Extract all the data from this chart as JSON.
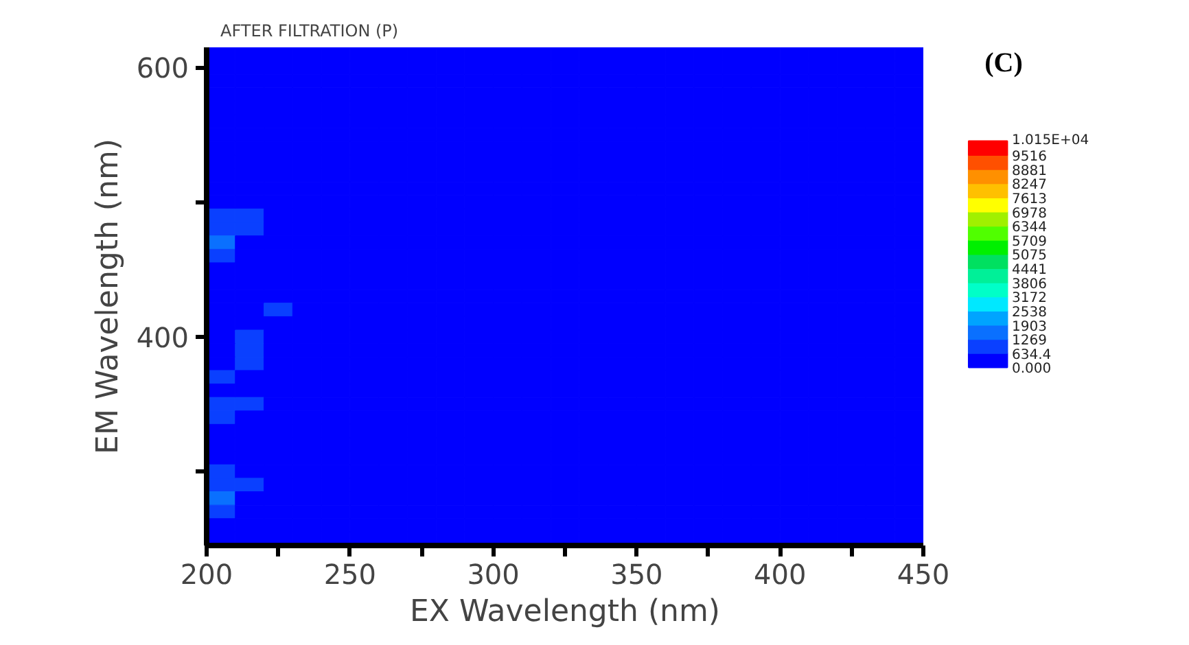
{
  "chart_data": {
    "type": "heatmap",
    "title": "AFTER FILTRATION (P)",
    "xlabel": "EX Wavelength (nm)",
    "ylabel": "EM Wavelength (nm)",
    "annotations": [
      "(C)"
    ],
    "x": [
      205,
      215,
      225,
      235,
      245,
      255,
      265,
      275,
      285,
      295,
      305,
      315,
      325,
      335,
      345,
      355,
      365,
      375,
      385,
      395,
      405,
      415,
      425,
      435,
      445
    ],
    "y": [
      610,
      600,
      590,
      580,
      570,
      560,
      550,
      540,
      530,
      520,
      510,
      500,
      490,
      480,
      470,
      460,
      450,
      440,
      430,
      420,
      410,
      400,
      390,
      380,
      370,
      360,
      350,
      340,
      330,
      320,
      310,
      300,
      290,
      280,
      270,
      260,
      250
    ],
    "xlim": [
      200,
      450
    ],
    "ylim": [
      245,
      615
    ],
    "xticks": [
      200,
      {
        "value": 225,
        "label": null
      },
      250,
      {
        "value": 275,
        "label": null
      },
      300,
      {
        "value": 325,
        "label": null
      },
      350,
      {
        "value": 375,
        "label": null
      },
      400,
      {
        "value": 425,
        "label": null
      },
      450
    ],
    "yticks": [
      {
        "value": 300,
        "label": null
      },
      400,
      {
        "value": 500,
        "label": null
      },
      600
    ],
    "clim": [
      0,
      10150
    ],
    "cticks": [
      {
        "value": 0,
        "label": "0.000"
      },
      {
        "value": 634.4,
        "label": "634.4"
      },
      1269,
      1903,
      2538,
      3172,
      3806,
      4441,
      5075,
      5709,
      6344,
      6978,
      7613,
      8247,
      8881,
      9516,
      {
        "value": 10150,
        "label": "1.015E+04"
      }
    ],
    "cells": [
      [
        0,
        0,
        0,
        0,
        0,
        0,
        0,
        0,
        0,
        0,
        0,
        0,
        0,
        0,
        0,
        0,
        0,
        0,
        0,
        0,
        0,
        0,
        0,
        0,
        0
      ],
      [
        0,
        0,
        0,
        0,
        0,
        0,
        0,
        0,
        0,
        0,
        0,
        0,
        0,
        0,
        0,
        0,
        0,
        0,
        0,
        0,
        0,
        0,
        0,
        0,
        0
      ],
      [
        0,
        0,
        0,
        0,
        0,
        0,
        0,
        0,
        0,
        0,
        0,
        0,
        0,
        0,
        0,
        0,
        0,
        0,
        0,
        0,
        0,
        0,
        0,
        0,
        0
      ],
      [
        0,
        0,
        0,
        0,
        0,
        0,
        0,
        0,
        0,
        0,
        0,
        0,
        0,
        0,
        0,
        0,
        0,
        0,
        0,
        0,
        0,
        0,
        0,
        0,
        0
      ],
      [
        0,
        0,
        0,
        0,
        0,
        0,
        0,
        0,
        0,
        0,
        0,
        0,
        0,
        0,
        0,
        0,
        0,
        0,
        0,
        0,
        0,
        0,
        0,
        0,
        0
      ],
      [
        0,
        0,
        0,
        0,
        0,
        0,
        0,
        0,
        0,
        0,
        0,
        0,
        0,
        0,
        0,
        0,
        0,
        0,
        0,
        0,
        0,
        0,
        0,
        0,
        0
      ],
      [
        0,
        0,
        0,
        0,
        0,
        0,
        0,
        0,
        0,
        0,
        0,
        0,
        0,
        0,
        0,
        0,
        0,
        0,
        0,
        0,
        0,
        0,
        0,
        0,
        0
      ],
      [
        0,
        0,
        0,
        0,
        0,
        0,
        0,
        0,
        0,
        0,
        0,
        0,
        0,
        0,
        0,
        0,
        0,
        0,
        0,
        0,
        0,
        0,
        0,
        0,
        0
      ],
      [
        0,
        0,
        0,
        0,
        0,
        0,
        0,
        0,
        0,
        0,
        0,
        0,
        0,
        0,
        0,
        0,
        0,
        0,
        0,
        0,
        0,
        0,
        0,
        0,
        0
      ],
      [
        0,
        0,
        0,
        0,
        0,
        0,
        0,
        0,
        0,
        0,
        0,
        0,
        0,
        0,
        0,
        0,
        0,
        0,
        0,
        0,
        0,
        0,
        0,
        0,
        0
      ],
      [
        0,
        0,
        0,
        0,
        0,
        0,
        0,
        0,
        0,
        0,
        0,
        0,
        0,
        0,
        0,
        0,
        0,
        0,
        0,
        0,
        0,
        0,
        0,
        0,
        0
      ],
      [
        0,
        0,
        0,
        0,
        0,
        0,
        0,
        0,
        0,
        0,
        0,
        0,
        0,
        0,
        0,
        0,
        0,
        0,
        0,
        0,
        0,
        0,
        0,
        0,
        0
      ],
      [
        950,
        950,
        0,
        0,
        0,
        0,
        0,
        0,
        0,
        0,
        0,
        0,
        0,
        0,
        0,
        0,
        0,
        0,
        0,
        0,
        0,
        0,
        0,
        0,
        0
      ],
      [
        950,
        950,
        0,
        0,
        0,
        0,
        0,
        0,
        0,
        0,
        0,
        0,
        0,
        0,
        0,
        0,
        0,
        0,
        0,
        0,
        0,
        0,
        0,
        0,
        0
      ],
      [
        1500,
        0,
        0,
        0,
        0,
        0,
        0,
        0,
        0,
        0,
        0,
        0,
        0,
        0,
        0,
        0,
        0,
        0,
        0,
        0,
        0,
        0,
        0,
        0,
        0
      ],
      [
        950,
        0,
        0,
        0,
        0,
        0,
        0,
        0,
        0,
        0,
        0,
        0,
        0,
        0,
        0,
        0,
        0,
        0,
        0,
        0,
        0,
        0,
        0,
        0,
        0
      ],
      [
        0,
        0,
        0,
        0,
        0,
        0,
        0,
        0,
        0,
        0,
        0,
        0,
        0,
        0,
        0,
        0,
        0,
        0,
        0,
        0,
        0,
        0,
        0,
        0,
        0
      ],
      [
        0,
        0,
        0,
        0,
        0,
        0,
        0,
        0,
        0,
        0,
        0,
        0,
        0,
        0,
        0,
        0,
        0,
        0,
        0,
        0,
        0,
        0,
        0,
        0,
        0
      ],
      [
        0,
        0,
        0,
        0,
        0,
        0,
        0,
        0,
        0,
        0,
        0,
        0,
        0,
        0,
        0,
        0,
        0,
        0,
        0,
        0,
        0,
        0,
        0,
        0,
        0
      ],
      [
        0,
        0,
        950,
        0,
        0,
        0,
        0,
        0,
        0,
        0,
        0,
        0,
        0,
        0,
        0,
        0,
        0,
        0,
        0,
        0,
        0,
        0,
        0,
        0,
        0
      ],
      [
        0,
        0,
        0,
        0,
        0,
        0,
        0,
        0,
        0,
        0,
        0,
        0,
        0,
        0,
        0,
        0,
        0,
        0,
        0,
        0,
        0,
        0,
        0,
        0,
        0
      ],
      [
        0,
        950,
        0,
        0,
        0,
        0,
        0,
        0,
        0,
        0,
        0,
        0,
        0,
        0,
        0,
        0,
        0,
        0,
        0,
        0,
        0,
        0,
        0,
        0,
        0
      ],
      [
        0,
        950,
        0,
        0,
        0,
        0,
        0,
        0,
        0,
        0,
        0,
        0,
        0,
        0,
        0,
        0,
        0,
        0,
        0,
        0,
        0,
        0,
        0,
        0,
        0
      ],
      [
        0,
        950,
        0,
        0,
        0,
        0,
        0,
        0,
        0,
        0,
        0,
        0,
        0,
        0,
        0,
        0,
        0,
        0,
        0,
        0,
        0,
        0,
        0,
        0,
        0
      ],
      [
        950,
        0,
        0,
        0,
        0,
        0,
        0,
        0,
        0,
        0,
        0,
        0,
        0,
        0,
        0,
        0,
        0,
        0,
        0,
        0,
        0,
        0,
        0,
        0,
        0
      ],
      [
        0,
        0,
        0,
        0,
        0,
        0,
        0,
        0,
        0,
        0,
        0,
        0,
        0,
        0,
        0,
        0,
        0,
        0,
        0,
        0,
        0,
        0,
        0,
        0,
        0
      ],
      [
        950,
        950,
        0,
        0,
        0,
        0,
        0,
        0,
        0,
        0,
        0,
        0,
        0,
        0,
        0,
        0,
        0,
        0,
        0,
        0,
        0,
        0,
        0,
        0,
        0
      ],
      [
        950,
        0,
        0,
        0,
        0,
        0,
        0,
        0,
        0,
        0,
        0,
        0,
        0,
        0,
        0,
        0,
        0,
        0,
        0,
        0,
        0,
        0,
        0,
        0,
        0
      ],
      [
        0,
        0,
        0,
        0,
        0,
        0,
        0,
        0,
        0,
        0,
        0,
        0,
        0,
        0,
        0,
        0,
        0,
        0,
        0,
        0,
        0,
        0,
        0,
        0,
        0
      ],
      [
        0,
        0,
        0,
        0,
        0,
        0,
        0,
        0,
        0,
        0,
        0,
        0,
        0,
        0,
        0,
        0,
        0,
        0,
        0,
        0,
        0,
        0,
        0,
        0,
        0
      ],
      [
        0,
        0,
        0,
        0,
        0,
        0,
        0,
        0,
        0,
        0,
        0,
        0,
        0,
        0,
        0,
        0,
        0,
        0,
        0,
        0,
        0,
        0,
        0,
        0,
        0
      ],
      [
        950,
        0,
        0,
        0,
        0,
        0,
        0,
        0,
        0,
        0,
        0,
        0,
        0,
        0,
        0,
        0,
        0,
        0,
        0,
        0,
        0,
        0,
        0,
        0,
        0
      ],
      [
        950,
        950,
        0,
        0,
        0,
        0,
        0,
        0,
        0,
        0,
        0,
        0,
        0,
        0,
        0,
        0,
        0,
        0,
        0,
        0,
        0,
        0,
        0,
        0,
        0
      ],
      [
        1500,
        0,
        0,
        0,
        0,
        0,
        0,
        0,
        0,
        0,
        0,
        0,
        0,
        0,
        0,
        0,
        0,
        0,
        0,
        0,
        0,
        0,
        0,
        0,
        0
      ],
      [
        950,
        0,
        0,
        0,
        0,
        0,
        0,
        0,
        0,
        0,
        0,
        0,
        0,
        0,
        0,
        0,
        0,
        0,
        0,
        0,
        0,
        0,
        0,
        0,
        0
      ],
      [
        0,
        0,
        0,
        0,
        0,
        0,
        0,
        0,
        0,
        0,
        0,
        0,
        0,
        0,
        0,
        0,
        0,
        0,
        0,
        0,
        0,
        0,
        0,
        0,
        0
      ],
      [
        0,
        0,
        0,
        0,
        0,
        0,
        0,
        0,
        0,
        0,
        0,
        0,
        0,
        0,
        0,
        0,
        0,
        0,
        0,
        0,
        0,
        0,
        0,
        0,
        0
      ]
    ]
  }
}
